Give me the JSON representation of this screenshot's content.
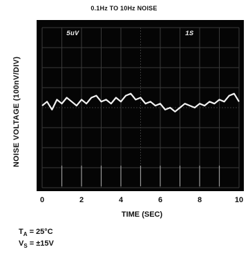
{
  "chart_data": {
    "type": "line",
    "title": "0.1Hz TO 10Hz NOISE",
    "xlabel": "TIME (SEC)",
    "ylabel": "NOISE VOLTAGE (100nV/DIV)",
    "xlim": [
      0,
      10
    ],
    "ylim": [
      -4,
      4
    ],
    "x_ticks": [
      "0",
      "2",
      "4",
      "6",
      "8",
      "10"
    ],
    "grid": true,
    "scope_annotations": [
      "5uV",
      "1S"
    ],
    "series": [
      {
        "x": [
          0,
          0.25,
          0.5,
          0.75,
          1,
          1.25,
          1.5,
          1.75,
          2,
          2.25,
          2.5,
          2.75,
          3,
          3.25,
          3.5,
          3.75,
          4,
          4.25,
          4.5,
          4.75,
          5,
          5.25,
          5.5,
          5.75,
          6,
          6.25,
          6.5,
          6.75,
          7,
          7.25,
          7.5,
          7.75,
          8,
          8.25,
          8.5,
          8.75,
          9,
          9.25,
          9.5,
          9.75,
          10
        ],
        "values": [
          0.1,
          0.3,
          -0.1,
          0.4,
          0.2,
          0.5,
          0.3,
          0.1,
          0.4,
          0.2,
          0.5,
          0.6,
          0.3,
          0.4,
          0.2,
          0.5,
          0.3,
          0.6,
          0.7,
          0.4,
          0.5,
          0.2,
          0.3,
          0.1,
          0.2,
          -0.1,
          0.0,
          -0.2,
          0.0,
          0.2,
          0.1,
          0.0,
          0.2,
          0.1,
          0.3,
          0.2,
          0.4,
          0.3,
          0.6,
          0.7,
          0.3
        ]
      }
    ],
    "conditions": {
      "ta_sym": "T",
      "ta_sub": "A",
      "ta_val": " = 25°C",
      "vs_sym": "V",
      "vs_sub": "S",
      "vs_val": " = ±15V"
    }
  },
  "colors": {
    "screen": "#050505",
    "grid": "#3a3a3a",
    "trace": "#f2f2f2"
  }
}
